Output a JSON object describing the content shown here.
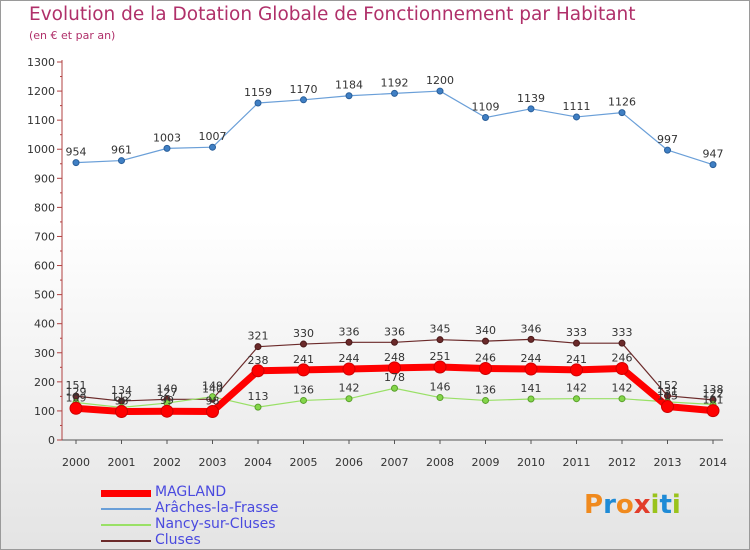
{
  "header": {
    "title": "Evolution de la Dotation Globale de Fonctionnement par Habitant",
    "subtitle": "(en € et par an)"
  },
  "logo": {
    "text": "Proxiti"
  },
  "colors": {
    "title": "#b0306a",
    "legend_text": "#4a4adf",
    "logo_letters": [
      "#f08a1e",
      "#1f8bd6",
      "#f08a1e",
      "#e23c2a",
      "#9ac31c",
      "#1f8bd6",
      "#9ac31c"
    ]
  },
  "chart_data": {
    "type": "line",
    "title": "Evolution de la Dotation Globale de Fonctionnement par Habitant",
    "subtitle": "(en € et par an)",
    "x": [
      "2000",
      "2001",
      "2002",
      "2003",
      "2004",
      "2005",
      "2006",
      "2007",
      "2008",
      "2009",
      "2010",
      "2011",
      "2012",
      "2013",
      "2014"
    ],
    "ylim": [
      0,
      1300
    ],
    "yticks": [
      0,
      100,
      200,
      300,
      400,
      500,
      600,
      700,
      800,
      900,
      1000,
      1100,
      1200,
      1300
    ],
    "grid": false,
    "legend_position": "bottom-left",
    "series": [
      {
        "name": "MAGLAND",
        "color": "#ff0000",
        "values": [
          109,
          98,
          99,
          98,
          238,
          241,
          244,
          248,
          251,
          246,
          244,
          241,
          246,
          115,
          101
        ]
      },
      {
        "name": "Arâches-la-Frasse",
        "color": "#6a9fd8",
        "values": [
          954,
          961,
          1003,
          1007,
          1159,
          1170,
          1184,
          1192,
          1200,
          1109,
          1139,
          1111,
          1126,
          997,
          947
        ]
      },
      {
        "name": "Nancy-sur-Cluses",
        "color": "#99e066",
        "values": [
          129,
          112,
          127,
          149,
          113,
          136,
          142,
          178,
          146,
          136,
          141,
          142,
          142,
          131,
          122
        ]
      },
      {
        "name": "Cluses",
        "color": "#6b2a2a",
        "values": [
          151,
          134,
          140,
          140,
          321,
          330,
          336,
          336,
          345,
          340,
          346,
          333,
          333,
          152,
          138
        ]
      }
    ]
  }
}
